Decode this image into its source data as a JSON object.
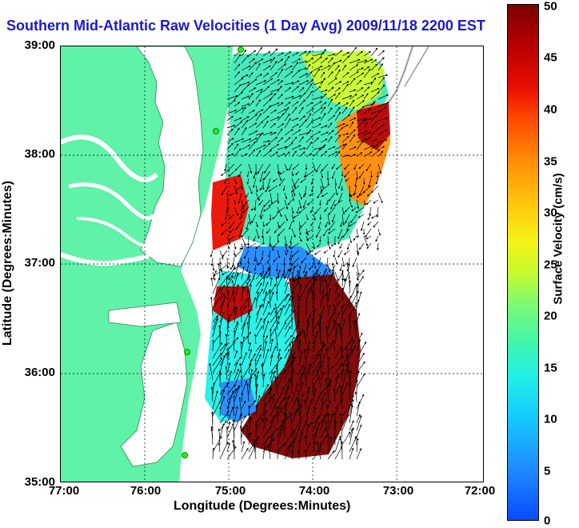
{
  "title": "Southern Mid-Atlantic Raw Velocities (1 Day Avg) 2009/11/18 2200 EST",
  "axes": {
    "xlabel": "Longitude (Degrees:Minutes)",
    "ylabel": "Latitude (Degrees:Minutes)",
    "xticks": [
      "77:00",
      "76:00",
      "75:00",
      "74:00",
      "73:00",
      "72:00"
    ],
    "yticks": [
      "39:00",
      "38:00",
      "37:00",
      "36:00",
      "35:00"
    ]
  },
  "colorbar": {
    "label": "Surface Velocity (cm/s)",
    "ticks": [
      "50",
      "45",
      "40",
      "35",
      "30",
      "25",
      "20",
      "15",
      "10",
      "5",
      "0"
    ]
  },
  "colors": {
    "land": "#5ff2a8",
    "water": "#ffffff",
    "title": "#1a1acc",
    "station": "#22ee22"
  }
}
